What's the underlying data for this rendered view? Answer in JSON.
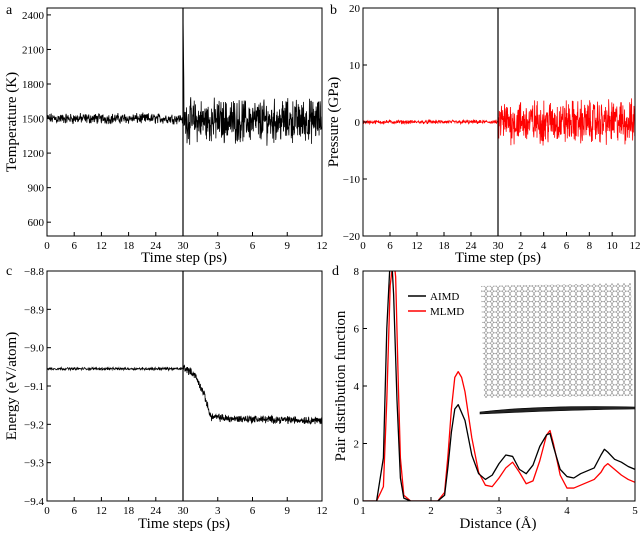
{
  "chart_data": [
    {
      "id": "a",
      "panel_label": "a",
      "type": "line",
      "ylabel": "Temperature (K)",
      "xlabel": "Time step (ps)",
      "ylim": [
        480,
        2460
      ],
      "yticks": [
        600,
        900,
        1200,
        1500,
        1800,
        2100,
        2400
      ],
      "segments": [
        {
          "xlim": [
            0,
            30
          ],
          "xticks": [
            0,
            6,
            12,
            18,
            24,
            30
          ]
        },
        {
          "xlim": [
            0,
            12
          ],
          "xticks": [
            3,
            6,
            9,
            12
          ]
        }
      ],
      "series": [
        {
          "color": "#000000",
          "seg1": {
            "mean": 1500,
            "amp": 55
          },
          "seg2": {
            "mean": 1480,
            "amp": 220,
            "start_spike": 2400
          }
        }
      ]
    },
    {
      "id": "b",
      "panel_label": "b",
      "type": "line",
      "ylabel": "Pressure (GPa)",
      "xlabel": "Time step (ps)",
      "ylim": [
        -20,
        20
      ],
      "yticks": [
        -20,
        -10,
        0,
        10,
        20
      ],
      "segments": [
        {
          "xlim": [
            0,
            30
          ],
          "xticks": [
            0,
            6,
            12,
            18,
            24,
            30
          ]
        },
        {
          "xlim": [
            0,
            12
          ],
          "xticks": [
            2,
            4,
            6,
            8,
            10,
            12
          ]
        }
      ],
      "series": [
        {
          "color": "#ff0000",
          "seg1": {
            "mean": 0,
            "amp": 0.4
          },
          "seg2": {
            "mean": 0,
            "amp": 4.5
          }
        }
      ]
    },
    {
      "id": "c",
      "panel_label": "c",
      "type": "line",
      "ylabel": "Energy (eV/atom)",
      "xlabel": "Time steps (ps)",
      "ylim": [
        -9.4,
        -8.8
      ],
      "yticks": [
        -9.4,
        -9.3,
        -9.2,
        -9.1,
        -9.0,
        -8.9,
        -8.8
      ],
      "segments": [
        {
          "xlim": [
            0,
            30
          ],
          "xticks": [
            0,
            6,
            12,
            18,
            24,
            30
          ]
        },
        {
          "xlim": [
            0,
            12
          ],
          "xticks": [
            3,
            6,
            9,
            12
          ]
        }
      ],
      "series": [
        {
          "color": "#000000",
          "seg1": {
            "mean": -9.055,
            "amp": 0.004
          },
          "seg2": {
            "profile": [
              [
                0,
                -9.05
              ],
              [
                1,
                -9.07
              ],
              [
                1.8,
                -9.12
              ],
              [
                2.4,
                -9.18
              ],
              [
                4,
                -9.185
              ],
              [
                12,
                -9.19
              ]
            ],
            "amp": 0.012
          }
        }
      ]
    },
    {
      "id": "d",
      "panel_label": "d",
      "type": "line",
      "ylabel": "Pair distribution function",
      "xlabel": "Distance (Å)",
      "xlim": [
        1,
        5
      ],
      "ylim": [
        0,
        8
      ],
      "xticks": [
        1,
        2,
        3,
        4,
        5
      ],
      "yticks": [
        0,
        2,
        4,
        6,
        8
      ],
      "legend": {
        "placement": "top-left",
        "entries": [
          "AIMD",
          "MLMD"
        ]
      },
      "series": [
        {
          "name": "AIMD",
          "color": "#000000",
          "x": [
            1.0,
            1.2,
            1.3,
            1.35,
            1.4,
            1.42,
            1.45,
            1.5,
            1.55,
            1.6,
            1.7,
            1.9,
            2.1,
            2.2,
            2.25,
            2.3,
            2.35,
            2.4,
            2.5,
            2.6,
            2.7,
            2.8,
            2.9,
            3.0,
            3.1,
            3.2,
            3.3,
            3.4,
            3.5,
            3.6,
            3.7,
            3.75,
            3.8,
            3.9,
            4.0,
            4.1,
            4.2,
            4.3,
            4.4,
            4.5,
            4.55,
            4.6,
            4.7,
            4.8,
            4.9,
            5.0
          ],
          "y": [
            0,
            0,
            1.5,
            6,
            8.4,
            8.5,
            7.2,
            3.5,
            0.8,
            0.1,
            0,
            0,
            0,
            0.2,
            1.2,
            2.4,
            3.2,
            3.35,
            2.8,
            1.6,
            0.95,
            0.75,
            0.9,
            1.3,
            1.6,
            1.55,
            1.1,
            0.95,
            1.25,
            1.9,
            2.3,
            2.35,
            1.9,
            1.1,
            0.85,
            0.8,
            0.95,
            1.05,
            1.15,
            1.6,
            1.8,
            1.7,
            1.45,
            1.35,
            1.2,
            1.1
          ]
        },
        {
          "name": "MLMD",
          "color": "#ff0000",
          "x": [
            1.0,
            1.2,
            1.3,
            1.35,
            1.4,
            1.45,
            1.48,
            1.52,
            1.55,
            1.6,
            1.7,
            1.9,
            2.1,
            2.2,
            2.25,
            2.3,
            2.35,
            2.4,
            2.45,
            2.5,
            2.6,
            2.7,
            2.8,
            2.9,
            3.0,
            3.1,
            3.2,
            3.3,
            3.4,
            3.5,
            3.6,
            3.7,
            3.75,
            3.8,
            3.9,
            4.0,
            4.1,
            4.2,
            4.3,
            4.4,
            4.5,
            4.55,
            4.6,
            4.7,
            4.8,
            4.9,
            5.0
          ],
          "y": [
            0,
            0,
            0.5,
            3.5,
            7.5,
            8.5,
            7.8,
            4,
            1.5,
            0.2,
            0,
            0,
            0,
            0.3,
            1.6,
            3.2,
            4.3,
            4.5,
            4.3,
            3.8,
            2.2,
            1,
            0.55,
            0.5,
            0.8,
            1.15,
            1.35,
            1,
            0.6,
            0.7,
            1.4,
            2.3,
            2.45,
            2,
            0.9,
            0.45,
            0.45,
            0.55,
            0.65,
            0.75,
            1,
            1.2,
            1.3,
            1.1,
            0.9,
            0.75,
            0.65
          ]
        }
      ]
    }
  ]
}
